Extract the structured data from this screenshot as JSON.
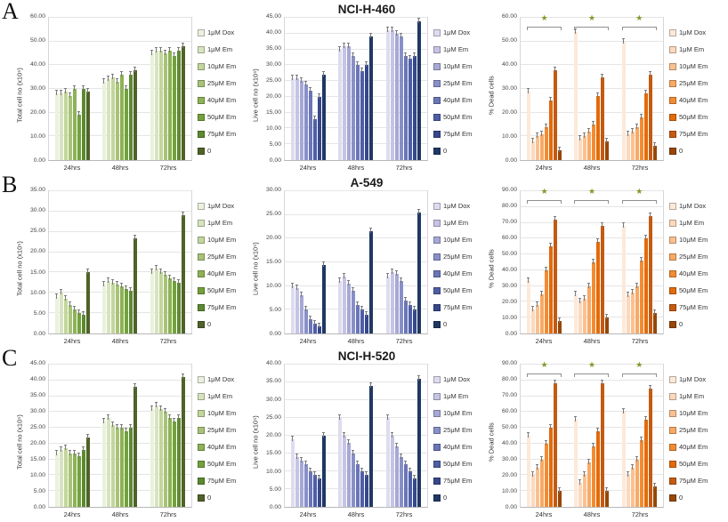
{
  "figure": {
    "rows": [
      {
        "label": "A"
      },
      {
        "label": "B"
      },
      {
        "label": "C"
      }
    ],
    "legend_labels": [
      "1μM Dox",
      "1μM Em",
      "10μM Em",
      "25μM Em",
      "40μM Em",
      "50μM Em",
      "75μM Em",
      "0"
    ],
    "categories": [
      "24hrs",
      "48hrs",
      "72hrs"
    ],
    "palettes": {
      "green": [
        "#ebf1de",
        "#d7e4bd",
        "#c3d69b",
        "#a8c379",
        "#8eb257",
        "#73a13c",
        "#5c8a30",
        "#4f6228"
      ],
      "blue": [
        "#dedcf0",
        "#c6c4e4",
        "#a6a8d6",
        "#8890c8",
        "#6a76b8",
        "#4e5ea6",
        "#36478d",
        "#1f3864"
      ],
      "orange": [
        "#fde9d9",
        "#fcd8bc",
        "#fac090",
        "#f8a964",
        "#f28c34",
        "#e26b0a",
        "#c55a11",
        "#974706"
      ]
    },
    "star_glyph": "★",
    "star_color": "#7c9a27"
  },
  "chart_data": [
    {
      "type": "bar",
      "panel": "A-total",
      "title": "",
      "ylabel": "Total cell no (x10⁵)",
      "ylim": [
        0,
        60
      ],
      "ystep": 10,
      "palette": "green",
      "stars": false,
      "categories": [
        "24hrs",
        "48hrs",
        "72hrs"
      ],
      "series": [
        {
          "name": "1μM Dox",
          "values": [
            28,
            33,
            45
          ]
        },
        {
          "name": "1μM Em",
          "values": [
            28,
            34,
            46
          ]
        },
        {
          "name": "10μM Em",
          "values": [
            29,
            35,
            46
          ]
        },
        {
          "name": "25μM Em",
          "values": [
            27,
            33,
            45
          ]
        },
        {
          "name": "40μM Em",
          "values": [
            30,
            36,
            46
          ]
        },
        {
          "name": "50μM Em",
          "values": [
            19,
            30,
            44
          ]
        },
        {
          "name": "75μM Em",
          "values": [
            30,
            36,
            46
          ]
        },
        {
          "name": "0",
          "values": [
            29,
            38,
            48
          ]
        }
      ]
    },
    {
      "type": "bar",
      "panel": "A-live",
      "title": "NCI-H-460",
      "ylabel": "Live cell no (x10⁵)",
      "ylim": [
        0,
        45
      ],
      "ystep": 5,
      "palette": "blue",
      "stars": false,
      "categories": [
        "24hrs",
        "48hrs",
        "72hrs"
      ],
      "series": [
        {
          "name": "1μM Dox",
          "values": [
            26,
            35,
            41
          ]
        },
        {
          "name": "1μM Em",
          "values": [
            26,
            36,
            41
          ]
        },
        {
          "name": "10μM Em",
          "values": [
            25,
            36,
            40
          ]
        },
        {
          "name": "25μM Em",
          "values": [
            24,
            33,
            39
          ]
        },
        {
          "name": "40μM Em",
          "values": [
            22,
            30,
            33
          ]
        },
        {
          "name": "50μM Em",
          "values": [
            13,
            28,
            32
          ]
        },
        {
          "name": "75μM Em",
          "values": [
            20,
            30,
            33
          ]
        },
        {
          "name": "0",
          "values": [
            27,
            39,
            44
          ]
        }
      ]
    },
    {
      "type": "bar",
      "panel": "A-dead",
      "title": "",
      "ylabel": "% Dead cells",
      "ylim": [
        0,
        60
      ],
      "ystep": 10,
      "palette": "orange",
      "stars": true,
      "categories": [
        "24hrs",
        "48hrs",
        "72hrs"
      ],
      "series": [
        {
          "name": "1μM Dox",
          "values": [
            29,
            54,
            50
          ]
        },
        {
          "name": "1μM Em",
          "values": [
            8,
            9,
            11
          ]
        },
        {
          "name": "10μM Em",
          "values": [
            10,
            10,
            12
          ]
        },
        {
          "name": "25μM Em",
          "values": [
            11,
            12,
            14
          ]
        },
        {
          "name": "40μM Em",
          "values": [
            14,
            15,
            18
          ]
        },
        {
          "name": "50μM Em",
          "values": [
            25,
            27,
            28
          ]
        },
        {
          "name": "75μM Em",
          "values": [
            38,
            35,
            36
          ]
        },
        {
          "name": "0",
          "values": [
            4,
            8,
            6
          ]
        }
      ]
    },
    {
      "type": "bar",
      "panel": "B-total",
      "title": "",
      "ylabel": "Total cell no (x10⁵)",
      "ylim": [
        0,
        35
      ],
      "ystep": 5,
      "palette": "green",
      "stars": false,
      "categories": [
        "24hrs",
        "48hrs",
        "72hrs"
      ],
      "series": [
        {
          "name": "1μM Dox",
          "values": [
            9,
            12,
            15
          ]
        },
        {
          "name": "1μM Em",
          "values": [
            10,
            13,
            16
          ]
        },
        {
          "name": "10μM Em",
          "values": [
            8.5,
            12.5,
            15
          ]
        },
        {
          "name": "25μM Em",
          "values": [
            7,
            12,
            14.5
          ]
        },
        {
          "name": "40μM Em",
          "values": [
            6,
            11.5,
            13.5
          ]
        },
        {
          "name": "50μM Em",
          "values": [
            5,
            11,
            13
          ]
        },
        {
          "name": "75μM Em",
          "values": [
            4.5,
            10.5,
            12.5
          ]
        },
        {
          "name": "0",
          "values": [
            15,
            23.5,
            29
          ]
        }
      ]
    },
    {
      "type": "bar",
      "panel": "B-live",
      "title": "A-549",
      "ylabel": "Live cell no (x10⁵)",
      "ylim": [
        0,
        30
      ],
      "ystep": 5,
      "palette": "blue",
      "stars": false,
      "categories": [
        "24hrs",
        "48hrs",
        "72hrs"
      ],
      "series": [
        {
          "name": "1μM Dox",
          "values": [
            10,
            11,
            12
          ]
        },
        {
          "name": "1μM Em",
          "values": [
            9.5,
            12,
            13
          ]
        },
        {
          "name": "10μM Em",
          "values": [
            8,
            10.5,
            12.5
          ]
        },
        {
          "name": "25μM Em",
          "values": [
            5,
            9,
            11
          ]
        },
        {
          "name": "40μM Em",
          "values": [
            3,
            6,
            7
          ]
        },
        {
          "name": "50μM Em",
          "values": [
            2,
            5,
            6
          ]
        },
        {
          "name": "75μM Em",
          "values": [
            1.5,
            4,
            5
          ]
        },
        {
          "name": "0",
          "values": [
            14.5,
            21.5,
            25.5
          ]
        }
      ]
    },
    {
      "type": "bar",
      "panel": "B-dead",
      "title": "",
      "ylabel": "% Dead cells",
      "ylim": [
        0,
        90
      ],
      "ystep": 10,
      "palette": "orange",
      "stars": true,
      "categories": [
        "24hrs",
        "48hrs",
        "72hrs"
      ],
      "series": [
        {
          "name": "1μM Dox",
          "values": [
            33,
            25,
            68
          ]
        },
        {
          "name": "1μM Em",
          "values": [
            15,
            20,
            24
          ]
        },
        {
          "name": "10μM Em",
          "values": [
            18,
            22,
            26
          ]
        },
        {
          "name": "25μM Em",
          "values": [
            25,
            30,
            30
          ]
        },
        {
          "name": "40μM Em",
          "values": [
            40,
            45,
            46
          ]
        },
        {
          "name": "50μM Em",
          "values": [
            55,
            58,
            60
          ]
        },
        {
          "name": "75μM Em",
          "values": [
            72,
            68,
            74
          ]
        },
        {
          "name": "0",
          "values": [
            8,
            10,
            13
          ]
        }
      ]
    },
    {
      "type": "bar",
      "panel": "C-total",
      "title": "",
      "ylabel": "Total cell no (x10⁵)",
      "ylim": [
        0,
        45
      ],
      "ystep": 5,
      "palette": "green",
      "stars": false,
      "categories": [
        "24hrs",
        "48hrs",
        "72hrs"
      ],
      "series": [
        {
          "name": "1μM Dox",
          "values": [
            17,
            27,
            31
          ]
        },
        {
          "name": "1μM Em",
          "values": [
            18,
            28,
            32
          ]
        },
        {
          "name": "10μM Em",
          "values": [
            18.5,
            26,
            31
          ]
        },
        {
          "name": "25μM Em",
          "values": [
            17,
            25,
            30
          ]
        },
        {
          "name": "40μM Em",
          "values": [
            17,
            25,
            28
          ]
        },
        {
          "name": "50μM Em",
          "values": [
            16,
            24,
            27
          ]
        },
        {
          "name": "75μM Em",
          "values": [
            18,
            25,
            28
          ]
        },
        {
          "name": "0",
          "values": [
            22,
            38,
            41
          ]
        }
      ]
    },
    {
      "type": "bar",
      "panel": "C-live",
      "title": "NCI-H-520",
      "ylabel": "Live cell no (x10⁵)",
      "ylim": [
        0,
        40
      ],
      "ystep": 5,
      "palette": "blue",
      "stars": false,
      "categories": [
        "24hrs",
        "48hrs",
        "72hrs"
      ],
      "series": [
        {
          "name": "1μM Dox",
          "values": [
            19,
            25,
            25
          ]
        },
        {
          "name": "1μM Em",
          "values": [
            14,
            20,
            20
          ]
        },
        {
          "name": "10μM Em",
          "values": [
            13,
            18,
            17
          ]
        },
        {
          "name": "25μM Em",
          "values": [
            12,
            15,
            14
          ]
        },
        {
          "name": "40μM Em",
          "values": [
            10,
            12,
            12
          ]
        },
        {
          "name": "50μM Em",
          "values": [
            9,
            10,
            10
          ]
        },
        {
          "name": "75μM Em",
          "values": [
            8,
            9,
            8
          ]
        },
        {
          "name": "0",
          "values": [
            20,
            34,
            36
          ]
        }
      ]
    },
    {
      "type": "bar",
      "panel": "C-dead",
      "title": "",
      "ylabel": "% Dead cells",
      "ylim": [
        0,
        90
      ],
      "ystep": 10,
      "palette": "orange",
      "stars": true,
      "categories": [
        "24hrs",
        "48hrs",
        "72hrs"
      ],
      "series": [
        {
          "name": "1μM Dox",
          "values": [
            45,
            55,
            60
          ]
        },
        {
          "name": "1μM Em",
          "values": [
            20,
            15,
            20
          ]
        },
        {
          "name": "10μM Em",
          "values": [
            25,
            20,
            25
          ]
        },
        {
          "name": "25μM Em",
          "values": [
            30,
            28,
            30
          ]
        },
        {
          "name": "40μM Em",
          "values": [
            40,
            38,
            42
          ]
        },
        {
          "name": "50μM Em",
          "values": [
            50,
            48,
            55
          ]
        },
        {
          "name": "75μM Em",
          "values": [
            78,
            78,
            75
          ]
        },
        {
          "name": "0",
          "values": [
            10,
            10,
            13
          ]
        }
      ]
    }
  ]
}
